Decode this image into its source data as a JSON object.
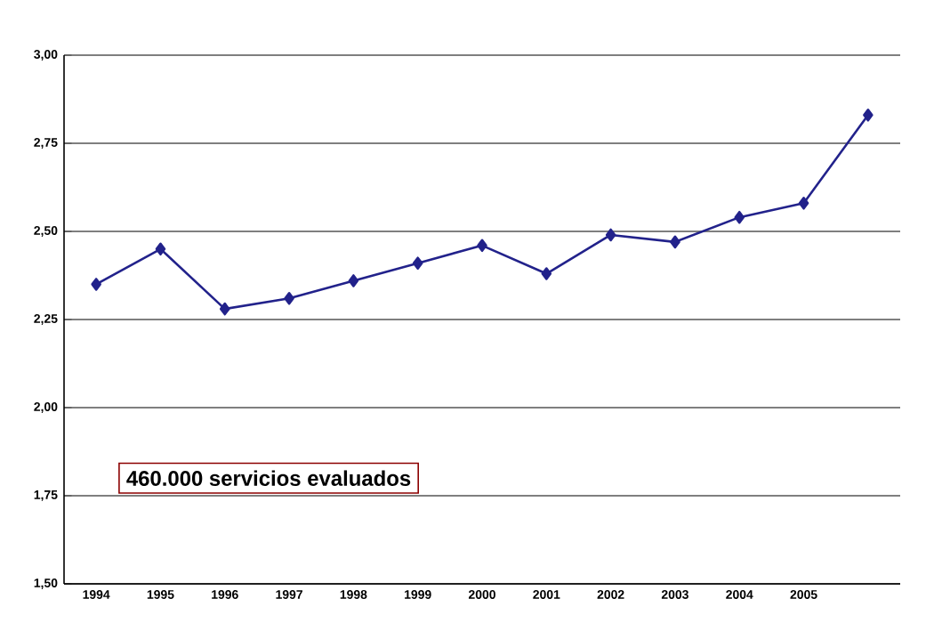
{
  "chart_data": {
    "type": "line",
    "categories": [
      "1994",
      "1995",
      "1996",
      "1997",
      "1998",
      "1999",
      "2000",
      "2001",
      "2002",
      "2003",
      "2004",
      "2005",
      null
    ],
    "series": [
      {
        "color": "#22228b",
        "values": [
          2.35,
          2.45,
          2.28,
          2.31,
          2.36,
          2.41,
          2.46,
          2.38,
          2.49,
          2.47,
          2.54,
          2.58,
          2.83
        ]
      }
    ],
    "ylim": [
      1.5,
      3.0
    ],
    "yticks": [
      {
        "value": 1.5,
        "label": "1,50"
      },
      {
        "value": 1.75,
        "label": "1,75"
      },
      {
        "value": 2.0,
        "label": "2,00"
      },
      {
        "value": 2.25,
        "label": "2,25"
      },
      {
        "value": 2.5,
        "label": "2,50"
      },
      {
        "value": 2.75,
        "label": "2,75"
      },
      {
        "value": 3.0,
        "label": "3,00"
      }
    ],
    "grid": "y",
    "marker": "diamond",
    "line_style": "solid",
    "annotations": [
      "460.000 servicios evaluados"
    ]
  }
}
